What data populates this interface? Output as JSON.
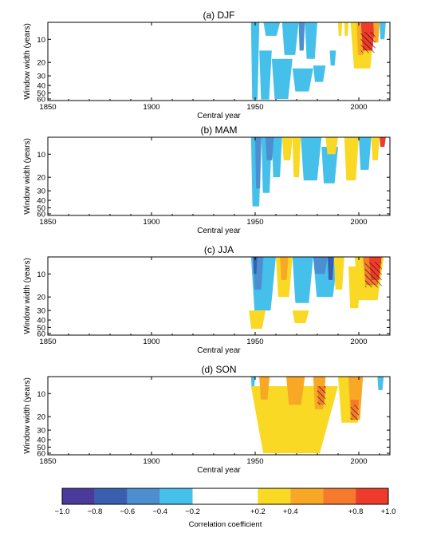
{
  "chart_data": {
    "type": "heatmap",
    "x_label": "Central year",
    "y_label": "Window width (years)",
    "x_range": [
      1850,
      2015
    ],
    "x_ticks": [
      1850,
      1900,
      1950,
      2000
    ],
    "y_range": [
      6,
      63
    ],
    "y_ticks": [
      10,
      20,
      30,
      40,
      50,
      60
    ],
    "y_scale": "log",
    "panels": [
      {
        "title": "(a) DJF",
        "blobs": [
          {
            "c": 1,
            "x0": 1948,
            "x1": 1952,
            "w0": 6,
            "w1": 61
          },
          {
            "c": 1,
            "x0": 1952,
            "x1": 1958,
            "w0": 14,
            "w1": 61
          },
          {
            "c": 1,
            "x0": 1958,
            "x1": 1968,
            "w0": 18,
            "w1": 60
          },
          {
            "c": 1,
            "x0": 1968,
            "x1": 1978,
            "w0": 24,
            "w1": 48
          },
          {
            "c": 1,
            "x0": 1978,
            "x1": 1984,
            "w0": 22,
            "w1": 36
          },
          {
            "c": 1,
            "x0": 1954,
            "x1": 1962,
            "w0": 6,
            "w1": 9
          },
          {
            "c": 1,
            "x0": 1963,
            "x1": 1971,
            "w0": 6,
            "w1": 16
          },
          {
            "c": 2,
            "x0": 1971,
            "x1": 1974,
            "w0": 6,
            "w1": 14
          },
          {
            "c": 1,
            "x0": 1974,
            "x1": 1980,
            "w0": 6,
            "w1": 18
          },
          {
            "c": 1,
            "x0": 1986,
            "x1": 1989,
            "w0": 14,
            "w1": 22
          },
          {
            "c": -1,
            "x0": 1990,
            "x1": 1992,
            "w0": 6,
            "w1": 9
          },
          {
            "c": -1,
            "x0": 1993,
            "x1": 1995,
            "w0": 6,
            "w1": 9
          },
          {
            "c": -1,
            "x0": 1996,
            "x1": 2008,
            "w0": 6,
            "w1": 24
          },
          {
            "c": -2,
            "x0": 1999,
            "x1": 2003,
            "w0": 6,
            "w1": 16
          },
          {
            "c": -4,
            "x0": 2001,
            "x1": 2008,
            "w0": 6,
            "w1": 14
          },
          {
            "c": -2,
            "x0": 2007,
            "x1": 2010,
            "w0": 6,
            "w1": 11
          },
          {
            "c": 1,
            "x0": 2010,
            "x1": 2013,
            "w0": 6,
            "w1": 10
          }
        ],
        "hatch": [
          {
            "x0": 2001,
            "x1": 2008,
            "w0": 8,
            "w1": 15
          }
        ]
      },
      {
        "title": "(b) MAM",
        "blobs": [
          {
            "c": 1,
            "x0": 1948,
            "x1": 1953,
            "w0": 6,
            "w1": 48
          },
          {
            "c": 1,
            "x0": 1953,
            "x1": 1958,
            "w0": 6,
            "w1": 32
          },
          {
            "c": 2,
            "x0": 1950,
            "x1": 1953,
            "w0": 6,
            "w1": 28
          },
          {
            "c": 1,
            "x0": 1958,
            "x1": 1963,
            "w0": 6,
            "w1": 20
          },
          {
            "c": 2,
            "x0": 1955,
            "x1": 1959,
            "w0": 6,
            "w1": 12
          },
          {
            "c": -1,
            "x0": 1963,
            "x1": 1968,
            "w0": 6,
            "w1": 12
          },
          {
            "c": -1,
            "x0": 1968,
            "x1": 1972,
            "w0": 6,
            "w1": 20
          },
          {
            "c": 1,
            "x0": 1972,
            "x1": 1982,
            "w0": 6,
            "w1": 22
          },
          {
            "c": 1,
            "x0": 1982,
            "x1": 1990,
            "w0": 8,
            "w1": 24
          },
          {
            "c": -1,
            "x0": 1984,
            "x1": 1990,
            "w0": 6,
            "w1": 10
          },
          {
            "c": -1,
            "x0": 1993,
            "x1": 2000,
            "w0": 6,
            "w1": 22
          },
          {
            "c": 1,
            "x0": 2000,
            "x1": 2006,
            "w0": 6,
            "w1": 16
          },
          {
            "c": -1,
            "x0": 2006,
            "x1": 2010,
            "w0": 6,
            "w1": 12
          },
          {
            "c": -4,
            "x0": 2010,
            "x1": 2013,
            "w0": 6,
            "w1": 8
          }
        ],
        "hatch": []
      },
      {
        "title": "(c) JJA",
        "blobs": [
          {
            "c": 1,
            "x0": 1948,
            "x1": 1960,
            "w0": 6,
            "w1": 30
          },
          {
            "c": 2,
            "x0": 1949,
            "x1": 1954,
            "w0": 6,
            "w1": 16
          },
          {
            "c": 3,
            "x0": 1949,
            "x1": 1951,
            "w0": 6,
            "w1": 10
          },
          {
            "c": -1,
            "x0": 1947,
            "x1": 1955,
            "w0": 30,
            "w1": 52
          },
          {
            "c": -1,
            "x0": 1960,
            "x1": 1968,
            "w0": 6,
            "w1": 20
          },
          {
            "c": -2,
            "x0": 1962,
            "x1": 1966,
            "w0": 6,
            "w1": 12
          },
          {
            "c": 1,
            "x0": 1968,
            "x1": 1978,
            "w0": 6,
            "w1": 24
          },
          {
            "c": 1,
            "x0": 1978,
            "x1": 1990,
            "w0": 6,
            "w1": 20
          },
          {
            "c": 2,
            "x0": 1978,
            "x1": 1985,
            "w0": 6,
            "w1": 10
          },
          {
            "c": 3,
            "x0": 1985,
            "x1": 1988,
            "w0": 6,
            "w1": 12
          },
          {
            "c": -1,
            "x0": 1988,
            "x1": 1993,
            "w0": 6,
            "w1": 16
          },
          {
            "c": -1,
            "x0": 1995,
            "x1": 2001,
            "w0": 8,
            "w1": 28
          },
          {
            "c": -1,
            "x0": 1998,
            "x1": 2012,
            "w0": 6,
            "w1": 22
          },
          {
            "c": -3,
            "x0": 2002,
            "x1": 2011,
            "w0": 6,
            "w1": 14
          },
          {
            "c": -4,
            "x0": 2005,
            "x1": 2011,
            "w0": 6,
            "w1": 12
          },
          {
            "c": -1,
            "x0": 1968,
            "x1": 1976,
            "w0": 30,
            "w1": 44
          }
        ],
        "hatch": [
          {
            "x0": 2003,
            "x1": 2011,
            "w0": 7,
            "w1": 15
          }
        ]
      },
      {
        "title": "(d) SON",
        "blobs": [
          {
            "c": 1,
            "x0": 1948,
            "x1": 1950,
            "w0": 6,
            "w1": 8
          },
          {
            "c": -1,
            "x0": 1948,
            "x1": 1990,
            "w0": 8,
            "w1": 60
          },
          {
            "c": -1,
            "x0": 1990,
            "x1": 2002,
            "w0": 6,
            "w1": 24
          },
          {
            "c": -2,
            "x0": 1952,
            "x1": 1957,
            "w0": 6,
            "w1": 12
          },
          {
            "c": -2,
            "x0": 1965,
            "x1": 1974,
            "w0": 6,
            "w1": 14
          },
          {
            "c": -2,
            "x0": 1978,
            "x1": 1984,
            "w0": 6,
            "w1": 16
          },
          {
            "c": -3,
            "x0": 1980,
            "x1": 1984,
            "w0": 8,
            "w1": 14
          },
          {
            "c": -2,
            "x0": 1995,
            "x1": 2002,
            "w0": 6,
            "w1": 22
          },
          {
            "c": -3,
            "x0": 1996,
            "x1": 2000,
            "w0": 12,
            "w1": 22
          },
          {
            "c": 1,
            "x0": 2009,
            "x1": 2012,
            "w0": 6,
            "w1": 9
          }
        ],
        "hatch": [
          {
            "x0": 1980,
            "x1": 1984,
            "w0": 8,
            "w1": 14
          },
          {
            "x0": 1996,
            "x1": 2000,
            "w0": 14,
            "w1": 22
          }
        ]
      }
    ],
    "colorbar": {
      "label": "Correlation coefficient",
      "range": [
        -1.0,
        1.0
      ],
      "levels": [
        -1.0,
        -0.8,
        -0.6,
        -0.4,
        -0.2,
        0.2,
        0.4,
        0.6,
        0.8,
        1.0
      ],
      "colors": [
        "#4a3a9c",
        "#3a5fb0",
        "#4b8fd0",
        "#45c0ea",
        "#ffffff",
        "#f9d923",
        "#f9a826",
        "#f57a2c",
        "#ee3b2b"
      ],
      "tick_values": [
        -1.0,
        -0.8,
        -0.6,
        -0.4,
        -0.2,
        0.2,
        0.4,
        0.8,
        1.0
      ],
      "tick_labels": [
        "−1.0",
        "−0.8",
        "−0.6",
        "−0.4",
        "−0.2",
        "+0.2",
        "+0.4",
        "+0.8",
        "+1.0"
      ]
    },
    "class_colors": {
      "1": "#45c0ea",
      "2": "#4b8fd0",
      "3": "#3a5fb0",
      "4": "#4a3a9c",
      "-1": "#f9d923",
      "-2": "#f9a826",
      "-3": "#f57a2c",
      "-4": "#ee3b2b"
    }
  }
}
